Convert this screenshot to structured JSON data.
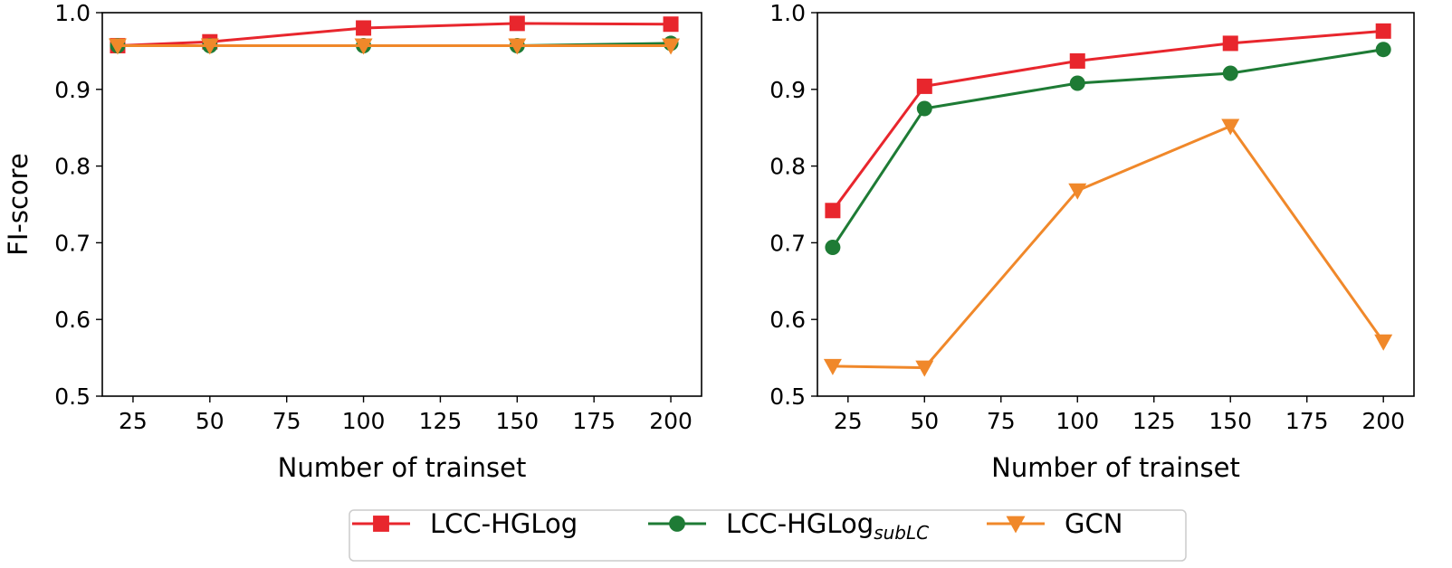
{
  "chart_data": [
    {
      "type": "line",
      "title": "",
      "xlabel": "Number of trainset",
      "ylabel": "FI-score",
      "xlim": [
        15,
        210
      ],
      "ylim": [
        0.5,
        1.0
      ],
      "xticks": [
        25,
        50,
        75,
        100,
        125,
        150,
        175,
        200
      ],
      "yticks": [
        0.5,
        0.6,
        0.7,
        0.8,
        0.9,
        1.0
      ],
      "grid": false,
      "x": [
        20,
        50,
        100,
        150,
        200
      ],
      "series": [
        {
          "name": "LCC-HGLog",
          "values": [
            0.957,
            0.962,
            0.98,
            0.986,
            0.985
          ]
        },
        {
          "name": "LCC-HGLog_subLC",
          "values": [
            0.957,
            0.957,
            0.957,
            0.957,
            0.96
          ]
        },
        {
          "name": "GCN",
          "values": [
            0.957,
            0.957,
            0.957,
            0.957,
            0.957
          ]
        }
      ]
    },
    {
      "type": "line",
      "title": "",
      "xlabel": "Number of trainset",
      "ylabel": "",
      "xlim": [
        15,
        210
      ],
      "ylim": [
        0.5,
        1.0
      ],
      "xticks": [
        25,
        50,
        75,
        100,
        125,
        150,
        175,
        200
      ],
      "yticks": [
        0.5,
        0.6,
        0.7,
        0.8,
        0.9,
        1.0
      ],
      "grid": false,
      "x": [
        20,
        50,
        100,
        150,
        200
      ],
      "series": [
        {
          "name": "LCC-HGLog",
          "values": [
            0.742,
            0.904,
            0.937,
            0.96,
            0.976
          ]
        },
        {
          "name": "LCC-HGLog_subLC",
          "values": [
            0.694,
            0.875,
            0.908,
            0.921,
            0.952
          ]
        },
        {
          "name": "GCN",
          "values": [
            0.539,
            0.537,
            0.768,
            0.852,
            0.571
          ]
        }
      ]
    }
  ],
  "legend": {
    "placement": "bottom-center",
    "entries": [
      {
        "label": "LCC-HGLog",
        "sub": "",
        "marker": "square",
        "color": "#e8262d"
      },
      {
        "label": "LCC-HGLog",
        "sub": "subLC",
        "marker": "circle",
        "color": "#1e7b35"
      },
      {
        "label": "GCN",
        "sub": "",
        "marker": "triangle-down",
        "color": "#f0882a"
      }
    ]
  },
  "colors": {
    "red": "#e8262d",
    "green": "#1e7b35",
    "orange": "#f0882a"
  }
}
